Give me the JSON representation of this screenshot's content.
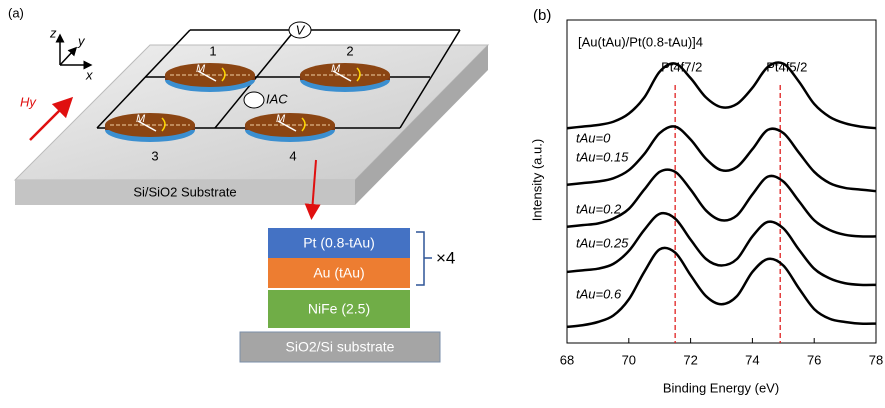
{
  "panel_a": {
    "label": "(a)",
    "axes": {
      "z": "z",
      "y": "y",
      "x": "x"
    },
    "field": "Hy",
    "voltmeter": "V",
    "current": "IAC",
    "devices": [
      "1",
      "2",
      "3",
      "4"
    ],
    "moment": "M",
    "substrate": "Si/SiO2 Substrate",
    "stack": {
      "layers": [
        "Pt (0.8-tAu)",
        "Au (tAu)",
        "NiFe (2.5)",
        "SiO2/Si substrate"
      ],
      "repeat": "×4"
    }
  },
  "chart_data": {
    "type": "line",
    "panel_label": "(b)",
    "title": "[Au(tAu)/Pt(0.8-tAu)]4",
    "x_label": "Binding Energy (eV)",
    "y_label": "Intensity (a.u.)",
    "x": [
      68,
      68.5,
      69,
      69.5,
      70,
      70.5,
      71,
      71.5,
      72,
      72.5,
      73,
      73.5,
      74,
      74.5,
      75,
      75.5,
      76,
      76.5,
      77,
      77.5,
      78
    ],
    "series": [
      {
        "name": "tAu=0",
        "color": "#000000",
        "values": [
          6.65,
          6.7,
          6.75,
          6.85,
          7.1,
          7.6,
          8.4,
          8.65,
          8.2,
          7.6,
          7.3,
          7.4,
          7.9,
          8.55,
          8.65,
          8.1,
          7.4,
          7.0,
          6.8,
          6.7,
          6.65
        ]
      },
      {
        "name": "tAu=0.15",
        "color": "#000000",
        "values": [
          4.9,
          4.95,
          5.0,
          5.1,
          5.35,
          5.85,
          6.5,
          6.7,
          6.3,
          5.7,
          5.35,
          5.45,
          6.0,
          6.6,
          6.5,
          5.9,
          5.3,
          4.95,
          4.8,
          4.75,
          4.7
        ]
      },
      {
        "name": "tAu=0.2",
        "color": "#000000",
        "values": [
          3.6,
          3.65,
          3.7,
          3.85,
          4.15,
          4.75,
          5.3,
          5.3,
          4.75,
          4.1,
          3.8,
          3.95,
          4.6,
          5.15,
          5.0,
          4.4,
          3.8,
          3.5,
          3.35,
          3.3,
          3.3
        ]
      },
      {
        "name": "tAu=0.25",
        "color": "#000000",
        "values": [
          2.2,
          2.25,
          2.3,
          2.45,
          2.85,
          3.5,
          4.0,
          3.85,
          3.2,
          2.6,
          2.4,
          2.6,
          3.3,
          3.75,
          3.55,
          2.9,
          2.3,
          2.0,
          1.85,
          1.8,
          1.8
        ]
      },
      {
        "name": "tAu=0.6",
        "color": "#000000",
        "values": [
          0.5,
          0.55,
          0.65,
          0.85,
          1.35,
          2.2,
          2.9,
          2.8,
          2.1,
          1.45,
          1.2,
          1.45,
          2.2,
          2.6,
          2.4,
          1.7,
          1.05,
          0.75,
          0.65,
          0.6,
          0.6
        ]
      }
    ],
    "reference_lines": {
      "x": [
        71.5,
        74.9
      ],
      "color": "#e02020",
      "labels": [
        "Pt4f7/2",
        "Pt4f5/2"
      ]
    },
    "xlim": [
      68,
      78
    ],
    "xticks": [
      68,
      70,
      72,
      74,
      76,
      78
    ],
    "ylim": [
      0,
      10
    ]
  }
}
